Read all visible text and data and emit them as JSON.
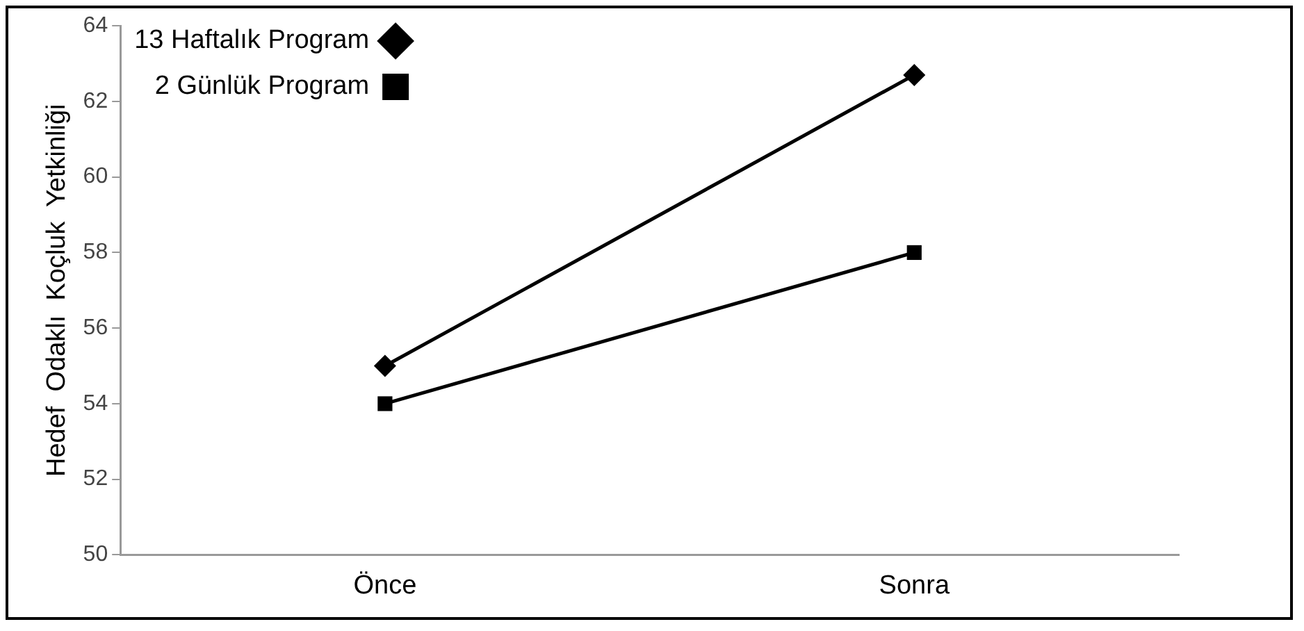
{
  "chart_data": {
    "type": "line",
    "ylabel": "Hedef  Odaklı  Koçluk  Yetkinliği",
    "categories": [
      "Önce",
      "Sonra"
    ],
    "series": [
      {
        "name": "13 Haftalık Program",
        "color": "#000000",
        "marker": "diamond",
        "values": [
          55,
          62.7
        ]
      },
      {
        "name": "2 Günlük Program",
        "color": "#000000",
        "marker": "square",
        "values": [
          54,
          58
        ]
      }
    ],
    "ylim": [
      50,
      64
    ],
    "yticks": [
      50,
      52,
      54,
      56,
      58,
      60,
      62,
      64
    ],
    "grid": false,
    "legend": "top left",
    "line_style": "solid"
  }
}
